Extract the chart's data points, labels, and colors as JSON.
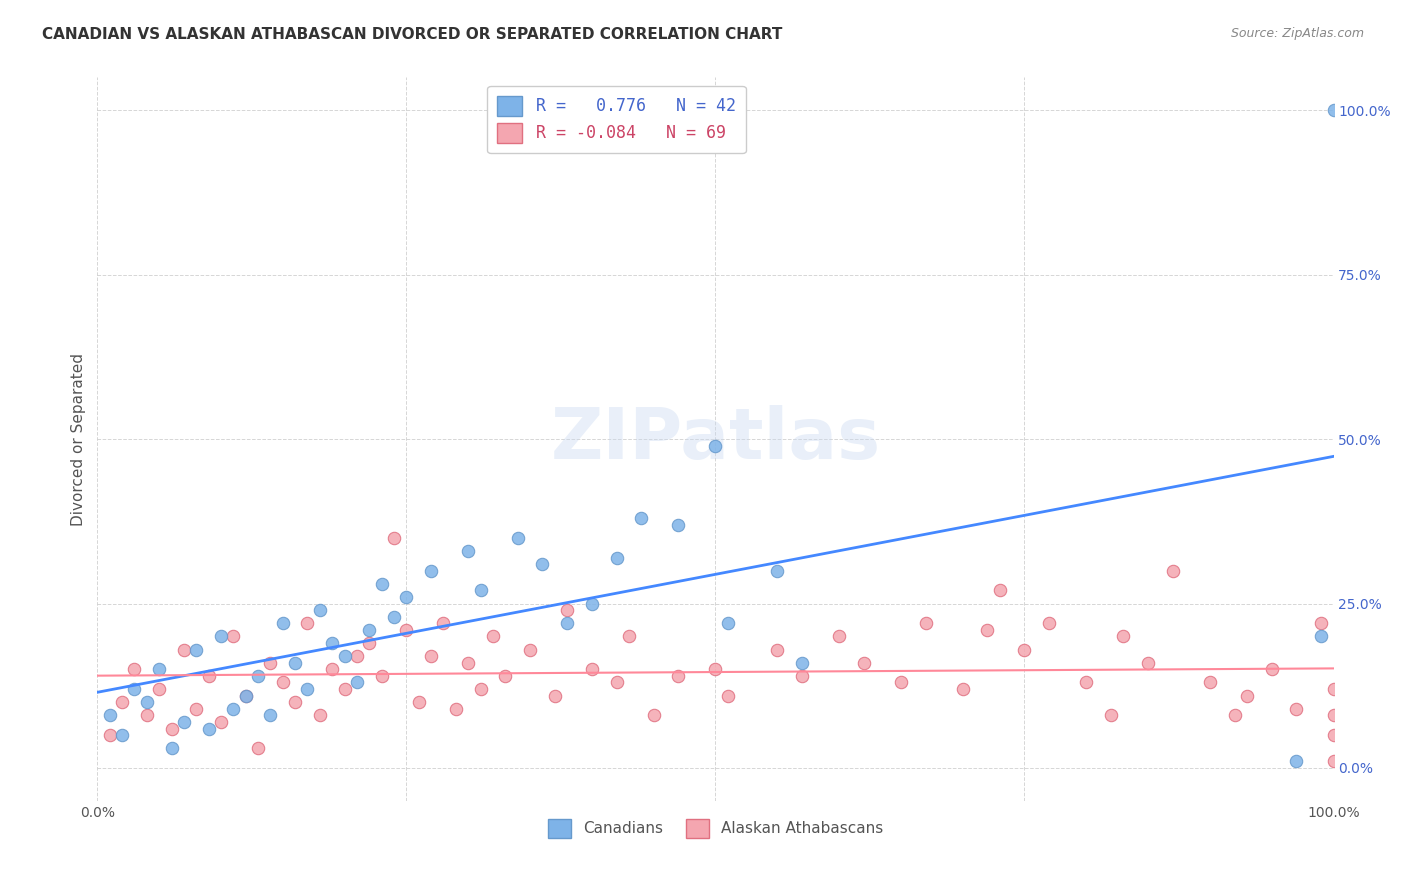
{
  "title": "CANADIAN VS ALASKAN ATHABASCAN DIVORCED OR SEPARATED CORRELATION CHART",
  "source": "Source: ZipAtlas.com",
  "ylabel": "Divorced or Separated",
  "xlabel": "",
  "xlim": [
    0,
    100
  ],
  "ylim": [
    -5,
    105
  ],
  "yticks": [
    0,
    25,
    50,
    75,
    100
  ],
  "ytick_labels": [
    "0.0%",
    "25.0%",
    "50.0%",
    "75.0%",
    "100.0%"
  ],
  "xticks": [
    0,
    25,
    50,
    75,
    100
  ],
  "xtick_labels": [
    "0.0%",
    "",
    "",
    "",
    "100.0%"
  ],
  "canadian_color": "#7EB3E8",
  "canadian_edge": "#6699CC",
  "alaskan_color": "#F4A6B0",
  "alaskan_edge": "#E07080",
  "line_blue": "#4488FF",
  "line_pink": "#FF8899",
  "legend_label1": "R =   0.776   N = 42",
  "legend_label2": "R = -0.084   N = 69",
  "legend_bottom_label1": "Canadians",
  "legend_bottom_label2": "Alaskan Athabascans",
  "R_canadian": 0.776,
  "N_canadian": 42,
  "R_alaskan": -0.084,
  "N_alaskan": 69,
  "watermark": "ZIPatlas",
  "grid_color": "#CCCCCC",
  "background_color": "#FFFFFF",
  "canadian_x": [
    1,
    2,
    3,
    4,
    5,
    6,
    7,
    8,
    9,
    10,
    11,
    12,
    13,
    14,
    15,
    16,
    17,
    18,
    19,
    20,
    21,
    22,
    23,
    24,
    25,
    27,
    30,
    31,
    34,
    36,
    38,
    40,
    42,
    44,
    47,
    50,
    51,
    55,
    57,
    97,
    99,
    100
  ],
  "canadian_y": [
    8,
    5,
    12,
    10,
    15,
    3,
    7,
    18,
    6,
    20,
    9,
    11,
    14,
    8,
    22,
    16,
    12,
    24,
    19,
    17,
    13,
    21,
    28,
    23,
    26,
    30,
    33,
    27,
    35,
    31,
    22,
    25,
    32,
    38,
    37,
    49,
    22,
    30,
    16,
    1,
    20,
    100
  ],
  "alaskan_x": [
    1,
    2,
    3,
    4,
    5,
    6,
    7,
    8,
    9,
    10,
    11,
    12,
    13,
    14,
    15,
    16,
    17,
    18,
    19,
    20,
    21,
    22,
    23,
    24,
    25,
    26,
    27,
    28,
    29,
    30,
    31,
    32,
    33,
    35,
    37,
    38,
    40,
    42,
    43,
    45,
    47,
    50,
    51,
    55,
    57,
    60,
    62,
    65,
    67,
    70,
    72,
    73,
    75,
    77,
    80,
    82,
    83,
    85,
    87,
    90,
    92,
    93,
    95,
    97,
    99,
    100,
    100,
    100,
    100
  ],
  "alaskan_y": [
    5,
    10,
    15,
    8,
    12,
    6,
    18,
    9,
    14,
    7,
    20,
    11,
    3,
    16,
    13,
    10,
    22,
    8,
    15,
    12,
    17,
    19,
    14,
    35,
    21,
    10,
    17,
    22,
    9,
    16,
    12,
    20,
    14,
    18,
    11,
    24,
    15,
    13,
    20,
    8,
    14,
    15,
    11,
    18,
    14,
    20,
    16,
    13,
    22,
    12,
    21,
    27,
    18,
    22,
    13,
    8,
    20,
    16,
    30,
    13,
    8,
    11,
    15,
    9,
    22,
    12,
    8,
    5,
    1
  ]
}
